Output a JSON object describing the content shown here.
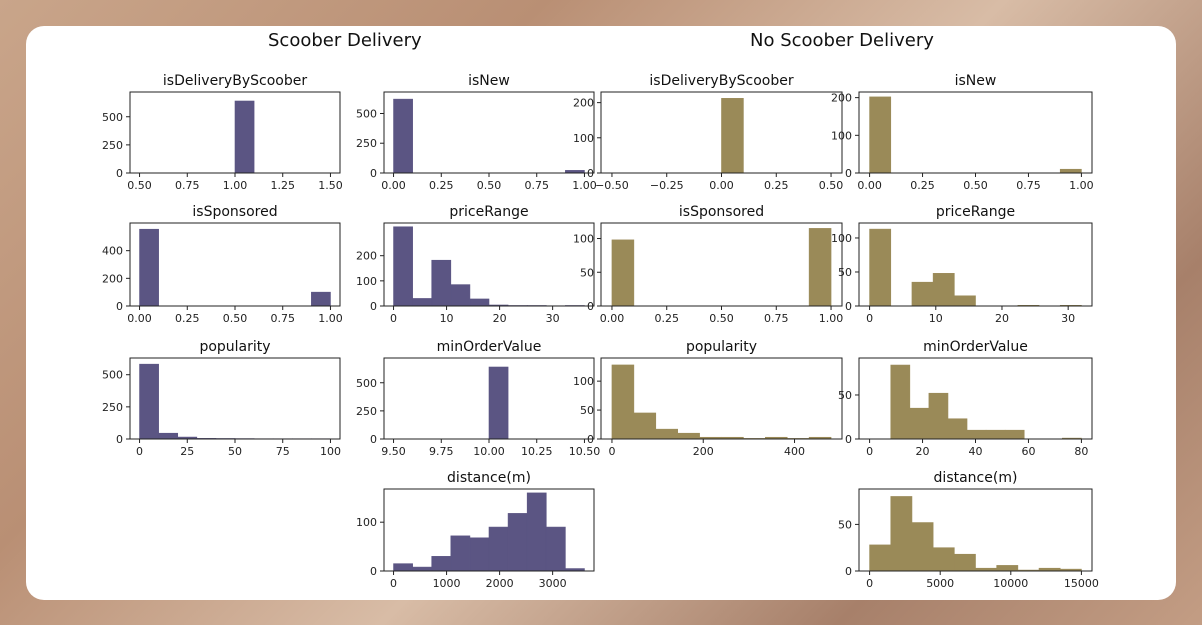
{
  "group_titles": {
    "left": "Scoober Delivery",
    "right": "No Scoober Delivery"
  },
  "colors": {
    "scoober": "#5b5583",
    "no_scoober": "#9a8a58"
  },
  "chart_data": [
    {
      "id": "s-isDelivery",
      "group": "left",
      "type": "bar",
      "title": "isDeliveryByScoober",
      "xlim": [
        0.45,
        1.55
      ],
      "ylim": [
        0,
        720
      ],
      "xticks": [
        0.5,
        0.75,
        1.0,
        1.25,
        1.5
      ],
      "xtick_labels": [
        "0.50",
        "0.75",
        "1.00",
        "1.25",
        "1.50"
      ],
      "yticks": [
        0,
        250,
        500
      ],
      "bins": [
        [
          1.0,
          1.1,
          640
        ]
      ]
    },
    {
      "id": "s-isNew",
      "group": "left",
      "type": "bar",
      "title": "isNew",
      "xlim": [
        -0.05,
        1.05
      ],
      "ylim": [
        0,
        680
      ],
      "xticks": [
        0,
        0.25,
        0.5,
        0.75,
        1.0
      ],
      "xtick_labels": [
        "0.00",
        "0.25",
        "0.50",
        "0.75",
        "1.00"
      ],
      "yticks": [
        0,
        250,
        500
      ],
      "bins": [
        [
          0,
          0.1,
          620
        ],
        [
          0.9,
          1.0,
          22
        ]
      ]
    },
    {
      "id": "n-isDelivery",
      "group": "right",
      "type": "bar",
      "title": "isDeliveryByScoober",
      "xlim": [
        -0.55,
        0.55
      ],
      "ylim": [
        0,
        230
      ],
      "xticks": [
        -0.5,
        -0.25,
        0,
        0.25,
        0.5
      ],
      "xtick_labels": [
        "−0.50",
        "−0.25",
        "0.00",
        "0.25",
        "0.50"
      ],
      "yticks": [
        0,
        100,
        200
      ],
      "bins": [
        [
          0,
          0.1,
          212
        ]
      ]
    },
    {
      "id": "n-isNew",
      "group": "right",
      "type": "bar",
      "title": "isNew",
      "xlim": [
        -0.05,
        1.05
      ],
      "ylim": [
        0,
        215
      ],
      "xticks": [
        0,
        0.25,
        0.5,
        0.75,
        1.0
      ],
      "xtick_labels": [
        "0.00",
        "0.25",
        "0.50",
        "0.75",
        "1.00"
      ],
      "yticks": [
        0,
        100,
        200
      ],
      "bins": [
        [
          0,
          0.1,
          202
        ],
        [
          0.9,
          1.0,
          10
        ]
      ]
    },
    {
      "id": "s-isSponsored",
      "group": "left",
      "type": "bar",
      "title": "isSponsored",
      "xlim": [
        -0.05,
        1.05
      ],
      "ylim": [
        0,
        600
      ],
      "xticks": [
        0,
        0.25,
        0.5,
        0.75,
        1.0
      ],
      "xtick_labels": [
        "0.00",
        "0.25",
        "0.50",
        "0.75",
        "1.00"
      ],
      "yticks": [
        0,
        200,
        400
      ],
      "bins": [
        [
          0,
          0.1,
          555
        ],
        [
          0.9,
          1.0,
          100
        ]
      ]
    },
    {
      "id": "s-priceRange",
      "group": "left",
      "type": "bar",
      "title": "priceRange",
      "xlim": [
        -1.8,
        37.8
      ],
      "ylim": [
        0,
        330
      ],
      "xticks": [
        0,
        10,
        20,
        30
      ],
      "xtick_labels": [
        "0",
        "10",
        "20",
        "30"
      ],
      "yticks": [
        0,
        100,
        200
      ],
      "bins": [
        [
          0,
          3.6,
          315
        ],
        [
          3.6,
          7.2,
          30
        ],
        [
          7.2,
          10.8,
          182
        ],
        [
          10.8,
          14.4,
          85
        ],
        [
          14.4,
          18,
          28
        ],
        [
          18,
          21.6,
          4
        ],
        [
          21.6,
          25.2,
          2
        ],
        [
          25.2,
          28.8,
          2
        ],
        [
          28.8,
          32.4,
          1
        ],
        [
          32.4,
          36,
          2
        ]
      ]
    },
    {
      "id": "n-isSponsored",
      "group": "right",
      "type": "bar",
      "title": "isSponsored",
      "xlim": [
        -0.05,
        1.05
      ],
      "ylim": [
        0,
        123
      ],
      "xticks": [
        0,
        0.25,
        0.5,
        0.75,
        1.0
      ],
      "xtick_labels": [
        "0.00",
        "0.25",
        "0.50",
        "0.75",
        "1.00"
      ],
      "yticks": [
        0,
        50,
        100
      ],
      "bins": [
        [
          0,
          0.1,
          98
        ],
        [
          0.9,
          1.0,
          115
        ]
      ]
    },
    {
      "id": "n-priceRange",
      "group": "right",
      "type": "bar",
      "title": "priceRange",
      "xlim": [
        -1.6,
        33.6
      ],
      "ylim": [
        0,
        122
      ],
      "xticks": [
        0,
        10,
        20,
        30
      ],
      "xtick_labels": [
        "0",
        "10",
        "20",
        "30"
      ],
      "yticks": [
        0,
        50,
        100
      ],
      "bins": [
        [
          0,
          3.2,
          113
        ],
        [
          3.2,
          6.4,
          0
        ],
        [
          6.4,
          9.6,
          35
        ],
        [
          9.6,
          12.8,
          48
        ],
        [
          12.8,
          16,
          15
        ],
        [
          16,
          19.2,
          0
        ],
        [
          19.2,
          22.4,
          0
        ],
        [
          22.4,
          25.6,
          1
        ],
        [
          25.6,
          28.8,
          0
        ],
        [
          28.8,
          32,
          1
        ]
      ]
    },
    {
      "id": "s-popularity",
      "group": "left",
      "type": "bar",
      "title": "popularity",
      "xlim": [
        -5,
        105
      ],
      "ylim": [
        0,
        630
      ],
      "xticks": [
        0,
        25,
        50,
        75,
        100
      ],
      "xtick_labels": [
        "0",
        "25",
        "50",
        "75",
        "100"
      ],
      "yticks": [
        0,
        250,
        500
      ],
      "bins": [
        [
          0,
          10,
          582
        ],
        [
          10,
          20,
          45
        ],
        [
          20,
          30,
          15
        ],
        [
          30,
          40,
          5
        ],
        [
          40,
          50,
          4
        ],
        [
          50,
          60,
          3
        ],
        [
          60,
          70,
          2
        ],
        [
          70,
          80,
          2
        ],
        [
          80,
          90,
          2
        ],
        [
          90,
          100,
          2
        ]
      ]
    },
    {
      "id": "s-minOrder",
      "group": "left",
      "type": "bar",
      "title": "minOrderValue",
      "xlim": [
        9.45,
        10.55
      ],
      "ylim": [
        0,
        720
      ],
      "xticks": [
        9.5,
        9.75,
        10.0,
        10.25,
        10.5
      ],
      "xtick_labels": [
        "9.50",
        "9.75",
        "10.00",
        "10.25",
        "10.50"
      ],
      "yticks": [
        0,
        250,
        500
      ],
      "bins": [
        [
          10.0,
          10.1,
          640
        ]
      ]
    },
    {
      "id": "n-popularity",
      "group": "right",
      "type": "bar",
      "title": "popularity",
      "xlim": [
        -24,
        504
      ],
      "ylim": [
        0,
        140
      ],
      "xticks": [
        0,
        200,
        400
      ],
      "xtick_labels": [
        "0",
        "200",
        "400"
      ],
      "yticks": [
        0,
        50,
        100
      ],
      "bins": [
        [
          0,
          48,
          128
        ],
        [
          48,
          96,
          45
        ],
        [
          96,
          144,
          17
        ],
        [
          144,
          192,
          10
        ],
        [
          192,
          240,
          3
        ],
        [
          240,
          288,
          3
        ],
        [
          288,
          336,
          1
        ],
        [
          336,
          384,
          3
        ],
        [
          384,
          432,
          1
        ],
        [
          432,
          480,
          3
        ]
      ]
    },
    {
      "id": "n-minOrder",
      "group": "right",
      "type": "bar",
      "title": "minOrderValue",
      "xlim": [
        -4,
        84
      ],
      "ylim": [
        0,
        92
      ],
      "xticks": [
        0,
        20,
        40,
        60,
        80
      ],
      "xtick_labels": [
        "0",
        "20",
        "40",
        "60",
        "80"
      ],
      "yticks": [
        0,
        50
      ],
      "bins": [
        [
          8,
          15.2,
          84
        ],
        [
          15.2,
          22.4,
          35
        ],
        [
          22.4,
          29.6,
          52
        ],
        [
          29.6,
          36.8,
          23
        ],
        [
          36.8,
          44,
          10
        ],
        [
          44,
          51.2,
          10
        ],
        [
          51.2,
          58.4,
          10
        ],
        [
          58.4,
          65.6,
          0
        ],
        [
          65.6,
          72.8,
          0
        ],
        [
          72.8,
          80,
          1
        ]
      ]
    },
    {
      "id": "s-distance",
      "group": "left",
      "type": "bar",
      "title": "distance(m)",
      "xlim": [
        -180,
        3780
      ],
      "ylim": [
        0,
        168
      ],
      "xticks": [
        0,
        1000,
        2000,
        3000
      ],
      "xtick_labels": [
        "0",
        "1000",
        "2000",
        "3000"
      ],
      "yticks": [
        0,
        100
      ],
      "bins": [
        [
          0,
          360,
          15
        ],
        [
          360,
          720,
          8
        ],
        [
          720,
          1080,
          30
        ],
        [
          1080,
          1440,
          72
        ],
        [
          1440,
          1800,
          68
        ],
        [
          1800,
          2160,
          90
        ],
        [
          2160,
          2520,
          118
        ],
        [
          2520,
          2880,
          160
        ],
        [
          2880,
          3240,
          90
        ],
        [
          3240,
          3600,
          5
        ]
      ]
    },
    {
      "id": "n-distance",
      "group": "right",
      "type": "bar",
      "title": "distance(m)",
      "xlim": [
        -750,
        15750
      ],
      "ylim": [
        0,
        88
      ],
      "xticks": [
        0,
        5000,
        10000,
        15000
      ],
      "xtick_labels": [
        "0",
        "5000",
        "10000",
        "15000"
      ],
      "yticks": [
        0,
        50
      ],
      "bins": [
        [
          0,
          1500,
          28
        ],
        [
          1500,
          3000,
          80
        ],
        [
          3000,
          4500,
          52
        ],
        [
          4500,
          6000,
          25
        ],
        [
          6000,
          7500,
          18
        ],
        [
          7500,
          9000,
          3
        ],
        [
          9000,
          10500,
          6
        ],
        [
          10500,
          12000,
          1
        ],
        [
          12000,
          13500,
          3
        ],
        [
          13500,
          15000,
          2
        ]
      ]
    }
  ]
}
